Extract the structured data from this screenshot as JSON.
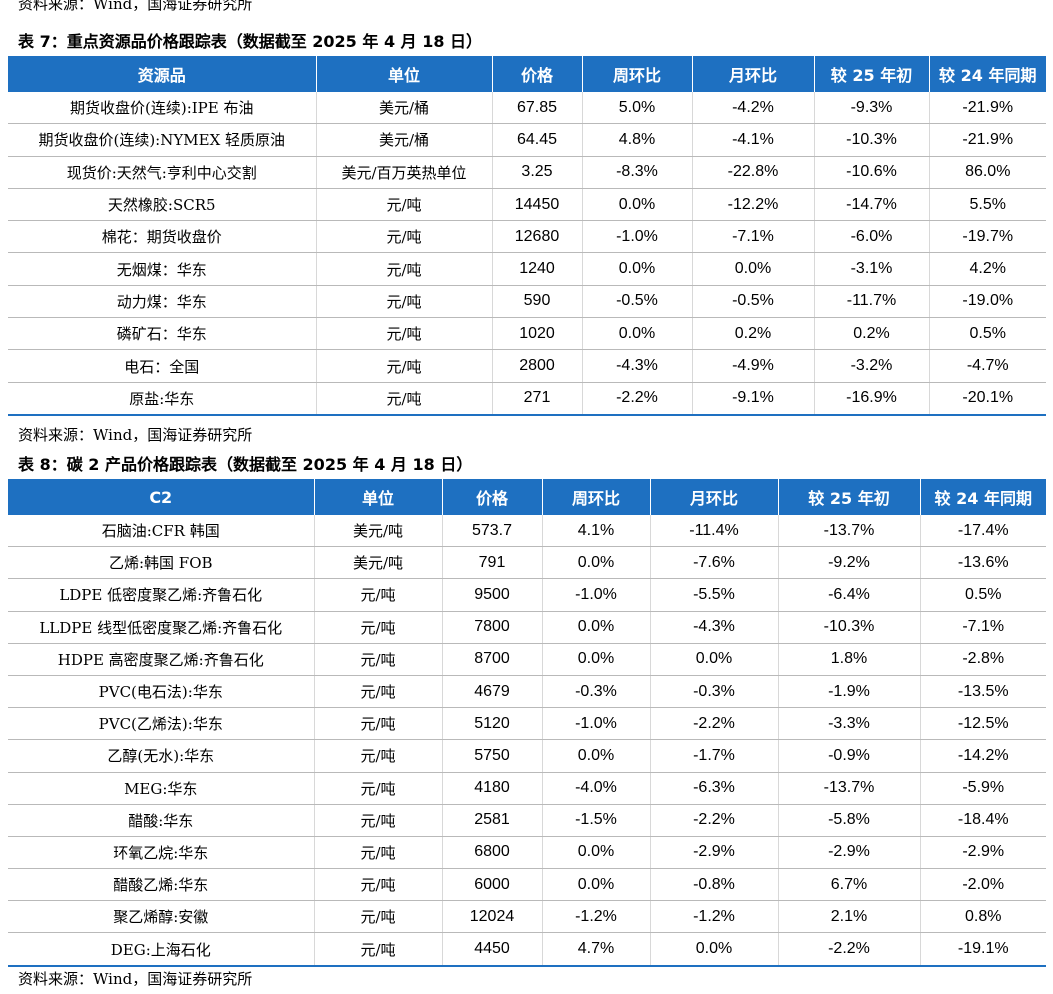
{
  "top_source": "资料来源：Wind，国海证券研究所",
  "table7": {
    "title": "表 7：重点资源品价格跟踪表（数据截至 2025 年 4 月 18 日）",
    "headers": [
      "资源品",
      "单位",
      "价格",
      "周环比",
      "月环比",
      "较 25 年初",
      "较 24 年同期"
    ],
    "rows": [
      [
        "期货收盘价(连续):IPE 布油",
        "美元/桶",
        "67.85",
        "5.0%",
        "-4.2%",
        "-9.3%",
        "-21.9%"
      ],
      [
        "期货收盘价(连续):NYMEX 轻质原油",
        "美元/桶",
        "64.45",
        "4.8%",
        "-4.1%",
        "-10.3%",
        "-21.9%"
      ],
      [
        "现货价:天然气:亨利中心交割",
        "美元/百万英热单位",
        "3.25",
        "-8.3%",
        "-22.8%",
        "-10.6%",
        "86.0%"
      ],
      [
        "天然橡胶:SCR5",
        "元/吨",
        "14450",
        "0.0%",
        "-12.2%",
        "-14.7%",
        "5.5%"
      ],
      [
        "棉花：期货收盘价",
        "元/吨",
        "12680",
        "-1.0%",
        "-7.1%",
        "-6.0%",
        "-19.7%"
      ],
      [
        "无烟煤：华东",
        "元/吨",
        "1240",
        "0.0%",
        "0.0%",
        "-3.1%",
        "4.2%"
      ],
      [
        "动力煤：华东",
        "元/吨",
        "590",
        "-0.5%",
        "-0.5%",
        "-11.7%",
        "-19.0%"
      ],
      [
        "磷矿石：华东",
        "元/吨",
        "1020",
        "0.0%",
        "0.2%",
        "0.2%",
        "0.5%"
      ],
      [
        "电石：全国",
        "元/吨",
        "2800",
        "-4.3%",
        "-4.9%",
        "-3.2%",
        "-4.7%"
      ],
      [
        "原盐:华东",
        "元/吨",
        "271",
        "-2.2%",
        "-9.1%",
        "-16.9%",
        "-20.1%"
      ]
    ],
    "source": "资料来源：Wind，国海证券研究所"
  },
  "table8": {
    "title": "表 8：碳 2 产品价格跟踪表（数据截至 2025 年 4 月 18 日）",
    "headers": [
      "C2",
      "单位",
      "价格",
      "周环比",
      "月环比",
      "较 25 年初",
      "较 24 年同期"
    ],
    "rows": [
      [
        "石脑油:CFR 韩国",
        "美元/吨",
        "573.7",
        "4.1%",
        "-11.4%",
        "-13.7%",
        "-17.4%"
      ],
      [
        "乙烯:韩国 FOB",
        "美元/吨",
        "791",
        "0.0%",
        "-7.6%",
        "-9.2%",
        "-13.6%"
      ],
      [
        "LDPE 低密度聚乙烯:齐鲁石化",
        "元/吨",
        "9500",
        "-1.0%",
        "-5.5%",
        "-6.4%",
        "0.5%"
      ],
      [
        "LLDPE 线型低密度聚乙烯:齐鲁石化",
        "元/吨",
        "7800",
        "0.0%",
        "-4.3%",
        "-10.3%",
        "-7.1%"
      ],
      [
        "HDPE 高密度聚乙烯:齐鲁石化",
        "元/吨",
        "8700",
        "0.0%",
        "0.0%",
        "1.8%",
        "-2.8%"
      ],
      [
        "PVC(电石法):华东",
        "元/吨",
        "4679",
        "-0.3%",
        "-0.3%",
        "-1.9%",
        "-13.5%"
      ],
      [
        "PVC(乙烯法):华东",
        "元/吨",
        "5120",
        "-1.0%",
        "-2.2%",
        "-3.3%",
        "-12.5%"
      ],
      [
        "乙醇(无水):华东",
        "元/吨",
        "5750",
        "0.0%",
        "-1.7%",
        "-0.9%",
        "-14.2%"
      ],
      [
        "MEG:华东",
        "元/吨",
        "4180",
        "-4.0%",
        "-6.3%",
        "-13.7%",
        "-5.9%"
      ],
      [
        "醋酸:华东",
        "元/吨",
        "2581",
        "-1.5%",
        "-2.2%",
        "-5.8%",
        "-18.4%"
      ],
      [
        "环氧乙烷:华东",
        "元/吨",
        "6800",
        "0.0%",
        "-2.9%",
        "-2.9%",
        "-2.9%"
      ],
      [
        "醋酸乙烯:华东",
        "元/吨",
        "6000",
        "0.0%",
        "-0.8%",
        "6.7%",
        "-2.0%"
      ],
      [
        "聚乙烯醇:安徽",
        "元/吨",
        "12024",
        "-1.2%",
        "-1.2%",
        "2.1%",
        "0.8%"
      ],
      [
        "DEG:上海石化",
        "元/吨",
        "4450",
        "4.7%",
        "0.0%",
        "-2.2%",
        "-19.1%"
      ]
    ],
    "source": "资料来源：Wind，国海证券研究所"
  }
}
